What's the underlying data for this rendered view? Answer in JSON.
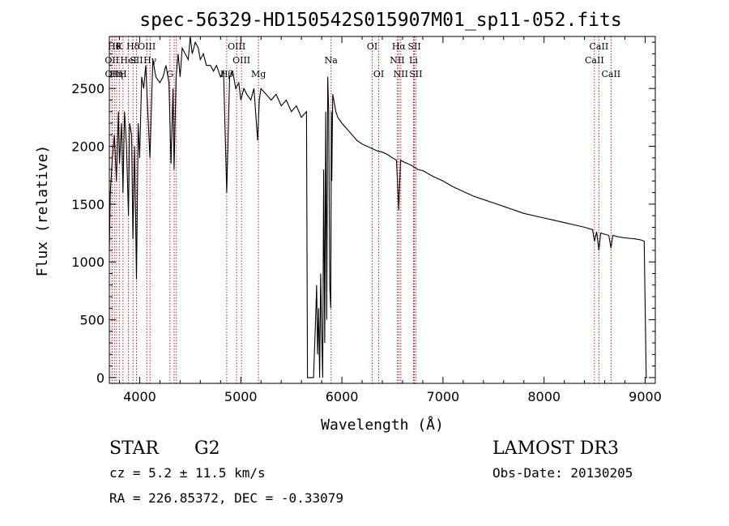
{
  "chart_data": {
    "type": "line",
    "title": "spec-56329-HD150542S015907M01_sp11-052.fits",
    "xlabel": "Wavelength (Å)",
    "ylabel": "Flux (relative)",
    "xlim": [
      3700,
      9100
    ],
    "ylim": [
      -50,
      2950
    ],
    "xticks": [
      4000,
      5000,
      6000,
      7000,
      8000,
      9000
    ],
    "yticks": [
      0,
      500,
      1000,
      1500,
      2000,
      2500
    ],
    "grid": false,
    "colors": {
      "spectrum": "#000000",
      "lines": "#cc0000",
      "axes": "#000000"
    },
    "spectrum": {
      "x": [
        3700,
        3710,
        3730,
        3750,
        3770,
        3790,
        3800,
        3820,
        3835,
        3850,
        3870,
        3889,
        3900,
        3920,
        3933,
        3950,
        3968,
        3985,
        4000,
        4020,
        4040,
        4060,
        4101,
        4130,
        4160,
        4200,
        4230,
        4260,
        4290,
        4310,
        4330,
        4340,
        4360,
        4380,
        4400,
        4420,
        4450,
        4480,
        4500,
        4520,
        4550,
        4580,
        4600,
        4630,
        4660,
        4700,
        4730,
        4760,
        4800,
        4830,
        4861,
        4890,
        4920,
        4950,
        4980,
        5000,
        5030,
        5060,
        5100,
        5130,
        5167,
        5183,
        5200,
        5250,
        5300,
        5350,
        5400,
        5450,
        5500,
        5550,
        5600,
        5650,
        5660,
        5700,
        5720,
        5740,
        5750,
        5760,
        5770,
        5780,
        5790,
        5800,
        5810,
        5820,
        5830,
        5840,
        5850,
        5860,
        5870,
        5880,
        5890,
        5896,
        5900,
        5910,
        5920,
        5940,
        5960,
        6000,
        6050,
        6100,
        6150,
        6200,
        6250,
        6300,
        6350,
        6400,
        6450,
        6500,
        6540,
        6563,
        6580,
        6600,
        6650,
        6700,
        6750,
        6800,
        6900,
        7000,
        7100,
        7200,
        7300,
        7400,
        7500,
        7600,
        7700,
        7800,
        7900,
        8000,
        8100,
        8200,
        8300,
        8400,
        8480,
        8498,
        8520,
        8542,
        8560,
        8600,
        8640,
        8662,
        8680,
        8720,
        8780,
        8840,
        8900,
        8960,
        8990,
        9000,
        9010,
        9020
      ],
      "y": [
        1100,
        1600,
        1900,
        2100,
        1700,
        2300,
        1850,
        2200,
        1600,
        2300,
        2000,
        1400,
        2200,
        2100,
        1200,
        2000,
        850,
        2200,
        1900,
        2600,
        2500,
        2700,
        1900,
        2750,
        2600,
        2550,
        2600,
        2700,
        2550,
        1850,
        2500,
        1800,
        2600,
        2800,
        2600,
        2850,
        2800,
        2750,
        2950,
        2800,
        2900,
        2850,
        2750,
        2800,
        2700,
        2700,
        2650,
        2700,
        2600,
        2650,
        1600,
        2600,
        2650,
        2500,
        2550,
        2400,
        2500,
        2450,
        2400,
        2500,
        2050,
        2400,
        2500,
        2450,
        2400,
        2450,
        2350,
        2400,
        2300,
        2350,
        2250,
        2300,
        0,
        0,
        0,
        500,
        800,
        200,
        600,
        0,
        900,
        400,
        0,
        1800,
        300,
        2300,
        500,
        2600,
        2300,
        800,
        600,
        2300,
        1700,
        2450,
        2400,
        2300,
        2250,
        2200,
        2150,
        2100,
        2050,
        2020,
        2000,
        1980,
        1960,
        1950,
        1930,
        1900,
        1880,
        1450,
        1880,
        1870,
        1850,
        1830,
        1800,
        1790,
        1740,
        1700,
        1650,
        1610,
        1570,
        1540,
        1510,
        1480,
        1450,
        1420,
        1400,
        1380,
        1360,
        1340,
        1320,
        1300,
        1280,
        1180,
        1260,
        1100,
        1250,
        1240,
        1230,
        1120,
        1230,
        1220,
        1210,
        1205,
        1200,
        1190,
        1180,
        600,
        0,
        0
      ]
    },
    "lines": [
      {
        "wl": 3726,
        "row": 1,
        "label": "OII"
      },
      {
        "wl": 3727,
        "row": 2,
        "label": "OII"
      },
      {
        "wl": 3750,
        "row": 0,
        "label": "Hθ"
      },
      {
        "wl": 3771,
        "row": 2,
        "label": "Hη"
      },
      {
        "wl": 3798,
        "row": 0,
        "label": "K"
      },
      {
        "wl": 3835,
        "row": 2,
        "label": "H"
      },
      {
        "wl": 3889,
        "row": 1,
        "label": "HeI"
      },
      {
        "wl": 3934,
        "row": 0,
        "label": "Hδ"
      },
      {
        "wl": 3968,
        "row": 1,
        "label": "SII"
      },
      {
        "wl": 4070,
        "row": 0,
        "label": "OIII"
      },
      {
        "wl": 4102,
        "row": 1,
        "label": "Hγ"
      },
      {
        "wl": 4300,
        "row": 2,
        "label": "G"
      },
      {
        "wl": 4341,
        "row": 1,
        "label": ""
      },
      {
        "wl": 4363,
        "row": 1,
        "label": ""
      },
      {
        "wl": 4861,
        "row": 2,
        "label": "Hβ"
      },
      {
        "wl": 4959,
        "row": 0,
        "label": "OIII"
      },
      {
        "wl": 5007,
        "row": 1,
        "label": "OIII"
      },
      {
        "wl": 5175,
        "row": 2,
        "label": "Mg"
      },
      {
        "wl": 5893,
        "row": 1,
        "label": "Na"
      },
      {
        "wl": 6300,
        "row": 0,
        "label": "OI"
      },
      {
        "wl": 6364,
        "row": 2,
        "label": "OI"
      },
      {
        "wl": 6548,
        "row": 1,
        "label": "NII"
      },
      {
        "wl": 6563,
        "row": 0,
        "label": "Hα"
      },
      {
        "wl": 6583,
        "row": 2,
        "label": "NII"
      },
      {
        "wl": 6708,
        "row": 1,
        "label": "Li"
      },
      {
        "wl": 6717,
        "row": 0,
        "label": "SII"
      },
      {
        "wl": 6731,
        "row": 2,
        "label": "SII"
      },
      {
        "wl": 8498,
        "row": 1,
        "label": "CaII"
      },
      {
        "wl": 8542,
        "row": 0,
        "label": "CaII"
      },
      {
        "wl": 8662,
        "row": 2,
        "label": "CaII"
      }
    ]
  },
  "info": {
    "object_class": "STAR",
    "subclass": "G2",
    "survey": "LAMOST DR3",
    "cz": "cz = 5.2 ± 11.5 km/s",
    "obs_date": "Obs-Date: 20130205",
    "coords": "RA = 226.85372, DEC =  -0.33079"
  }
}
